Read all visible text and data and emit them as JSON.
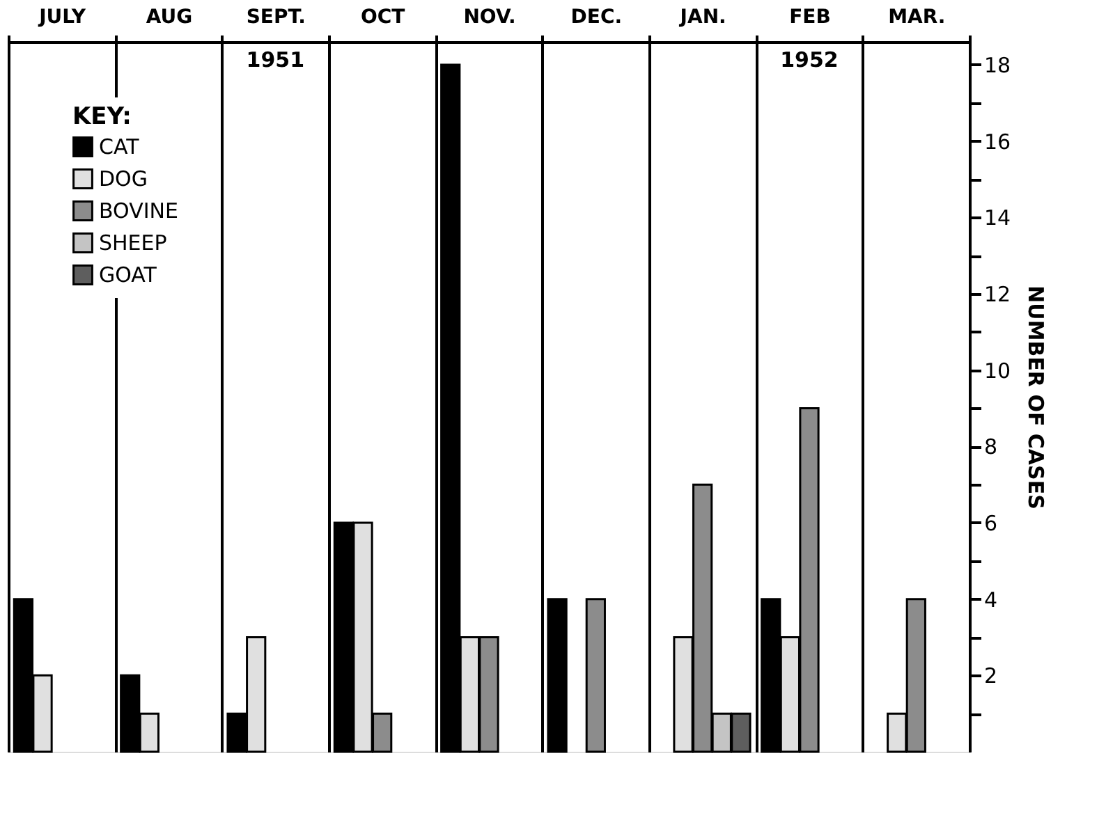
{
  "chart_data": {
    "type": "bar",
    "categories": [
      "JULY",
      "AUG",
      "SEPT.",
      "OCT",
      "NOV.",
      "DEC.",
      "JAN.",
      "FEB",
      "MAR."
    ],
    "series": [
      {
        "name": "CAT",
        "color": "#000000",
        "values": [
          4,
          2,
          1,
          6,
          18,
          4,
          null,
          4,
          null
        ]
      },
      {
        "name": "DOG",
        "color": "#e0e0e0",
        "values": [
          2,
          1,
          3,
          6,
          3,
          null,
          3,
          3,
          1
        ]
      },
      {
        "name": "BOVINE",
        "color": "#8c8c8c",
        "values": [
          null,
          null,
          null,
          1,
          3,
          4,
          7,
          9,
          4
        ]
      },
      {
        "name": "SHEEP",
        "color": "#c4c4c4",
        "values": [
          null,
          null,
          null,
          null,
          null,
          null,
          1,
          null,
          null
        ]
      },
      {
        "name": "GOAT",
        "color": "#5e5e5e",
        "values": [
          null,
          null,
          null,
          null,
          null,
          null,
          1,
          null,
          null
        ]
      }
    ],
    "ylabel": "NUMBER OF CASES",
    "legend_title": "KEY:",
    "legend": "top left",
    "ylim": [
      0,
      18.6
    ],
    "yticks": [
      {
        "value": 1,
        "label": null
      },
      2,
      {
        "value": 3,
        "label": null
      },
      4,
      {
        "value": 5,
        "label": null
      },
      6,
      {
        "value": 7,
        "label": null
      },
      8,
      {
        "value": 9,
        "label": null
      },
      10,
      {
        "value": 11,
        "label": null
      },
      12,
      {
        "value": 13,
        "label": null
      },
      14,
      {
        "value": 15,
        "label": null
      },
      16,
      {
        "value": 17,
        "label": null
      },
      18
    ],
    "grid": "x",
    "annotations": [
      "1951",
      "1952"
    ]
  }
}
